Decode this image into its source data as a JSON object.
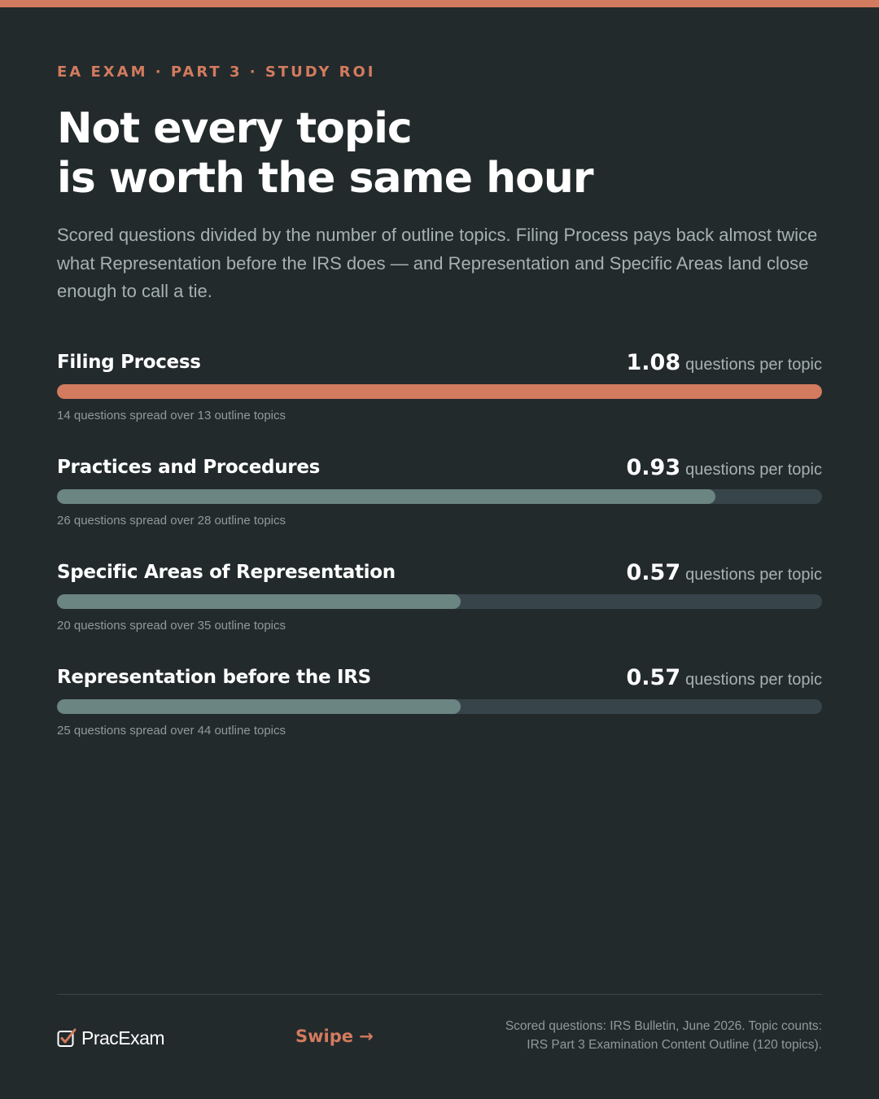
{
  "colors": {
    "accent": "#d37b5e",
    "background": "#232a2c",
    "bar_muted": "#6b8582",
    "track": "#37454b"
  },
  "header": {
    "eyebrow": "EA EXAM · PART 3 · STUDY ROI",
    "title_line1": "Not every topic",
    "title_line2": "is worth the same hour",
    "subtitle": "Scored questions divided by the number of outline topics. Filing Process pays back almost twice what Representation before the IRS does — and Representation and Specific Areas land close enough to call a tie."
  },
  "chart_data": {
    "type": "bar",
    "orientation": "horizontal",
    "title": "Not every topic is worth the same hour",
    "unit": "questions per topic",
    "xlim": [
      0,
      1.08
    ],
    "categories": [
      "Filing Process",
      "Practices and Procedures",
      "Specific Areas of Representation",
      "Representation before the IRS"
    ],
    "values": [
      1.08,
      0.93,
      0.57,
      0.57
    ],
    "value_labels": [
      "1.08",
      "0.93",
      "0.57",
      "0.57"
    ],
    "highlight_index": 0,
    "notes": [
      "14 questions spread over 13 outline topics",
      "26 questions spread over 28 outline topics",
      "20 questions spread over 35 outline topics",
      "25 questions spread over 44 outline topics"
    ],
    "questions": [
      14,
      26,
      20,
      25
    ],
    "topics": [
      13,
      28,
      35,
      44
    ]
  },
  "footer": {
    "brand": "PracExam",
    "brand_icon": "checkbox-check-icon",
    "swipe": "Swipe →",
    "source_line1": "Scored questions: IRS Bulletin, June 2026. Topic counts:",
    "source_line2": "IRS Part 3 Examination Content Outline (120 topics)."
  }
}
